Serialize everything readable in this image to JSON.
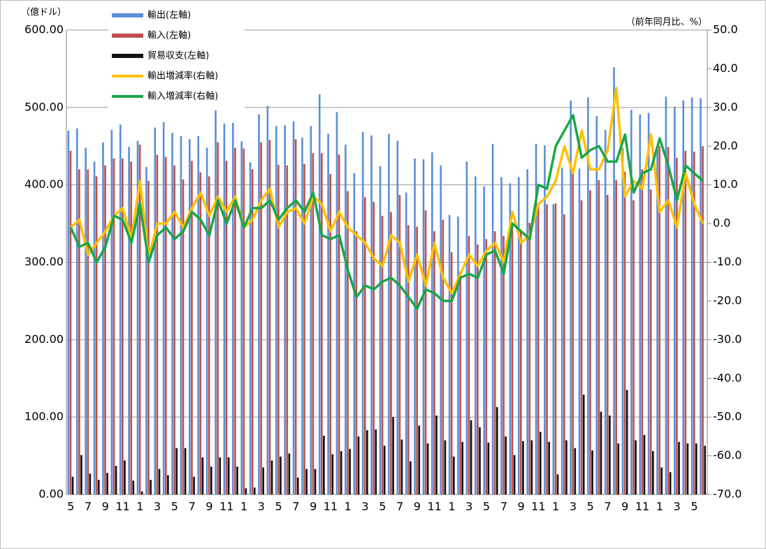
{
  "chart_data": {
    "type": "bar_line",
    "y_label": "（億ドル）",
    "y2_label": "（前年同月比、%）",
    "categories": [
      "5",
      null,
      "7",
      null,
      "9",
      null,
      "11",
      null,
      "1",
      null,
      "3",
      null,
      "5",
      null,
      "7",
      null,
      "9",
      null,
      "11",
      null,
      "1",
      null,
      "3",
      null,
      "5",
      null,
      "7",
      null,
      "9",
      null,
      "11",
      null,
      "1",
      null,
      "3",
      null,
      "5",
      null,
      "7",
      null,
      "9",
      null,
      "11",
      null,
      "1",
      null,
      "3",
      null,
      "5",
      null,
      "7",
      null,
      "9",
      null,
      "11",
      null,
      "1",
      null,
      "3",
      null,
      "5",
      null,
      "7",
      null,
      "9",
      null,
      "11",
      null,
      "1",
      null,
      "3",
      null,
      "5",
      null
    ],
    "ylim": [
      0,
      600
    ],
    "yticks": [
      {
        "value": 0,
        "label": "0.00"
      },
      {
        "value": 100,
        "label": "100.00"
      },
      {
        "value": 200,
        "label": "200.00"
      },
      {
        "value": 300,
        "label": "300.00"
      },
      {
        "value": 400,
        "label": "400.00"
      },
      {
        "value": 500,
        "label": "500.00"
      },
      {
        "value": 600,
        "label": "600.00"
      }
    ],
    "y2lim": [
      -70,
      50
    ],
    "y2ticks": [
      {
        "value": -70,
        "label": "-70.0"
      },
      {
        "value": -60,
        "label": "-60.0"
      },
      {
        "value": -50,
        "label": "-50.0"
      },
      {
        "value": -40,
        "label": "-40.0"
      },
      {
        "value": -30,
        "label": "-30.0"
      },
      {
        "value": -20,
        "label": "-20.0"
      },
      {
        "value": -10,
        "label": "-10.0"
      },
      {
        "value": 0,
        "label": "0.0"
      },
      {
        "value": 10,
        "label": "10.0"
      },
      {
        "value": 20,
        "label": "20.0"
      },
      {
        "value": 30,
        "label": "30.0"
      },
      {
        "value": 40,
        "label": "40.0"
      },
      {
        "value": 50,
        "label": "50.0"
      }
    ],
    "grid": true,
    "legend": "top-left",
    "series": [
      {
        "name": "輸出(左軸)",
        "color": "#5b8fd6",
        "kind": "bar",
        "values": [
          470,
          473,
          448,
          430,
          455,
          471,
          478,
          449,
          457,
          423,
          474,
          481,
          467,
          463,
          459,
          463,
          448,
          497,
          479,
          480,
          456,
          429,
          491,
          502,
          476,
          477,
          482,
          461,
          476,
          517,
          466,
          494,
          452,
          415,
          468,
          464,
          424,
          466,
          457,
          390,
          434,
          433,
          442,
          425,
          361,
          359,
          430,
          411,
          398,
          453,
          410,
          402,
          410,
          420,
          453,
          451,
          375,
          422,
          509,
          421,
          513,
          489,
          471,
          552,
          448,
          497,
          491,
          493,
          446,
          514,
          501,
          509,
          513,
          512
        ]
      },
      {
        "name": "輸入(左軸)",
        "color": "#c0504d",
        "kind": "bar",
        "values": [
          444,
          420,
          420,
          411,
          425,
          434,
          434,
          430,
          452,
          405,
          439,
          436,
          425,
          407,
          431,
          416,
          411,
          455,
          431,
          448,
          447,
          420,
          455,
          458,
          426,
          425,
          459,
          427,
          441,
          441,
          414,
          439,
          392,
          340,
          384,
          378,
          360,
          365,
          387,
          348,
          346,
          367,
          340,
          355,
          313,
          288,
          334,
          323,
          330,
          340,
          334,
          350,
          340,
          351,
          372,
          375,
          376,
          362,
          414,
          380,
          393,
          406,
          387,
          406,
          417,
          380,
          420,
          394,
          450,
          449,
          435,
          444,
          443,
          450
        ]
      },
      {
        "name": "貿易収支(左軸)",
        "color": "#111111",
        "kind": "bar",
        "values": [
          23,
          51,
          27,
          19,
          28,
          37,
          44,
          18,
          4,
          19,
          33,
          25,
          60,
          60,
          23,
          48,
          36,
          48,
          48,
          36,
          8,
          9,
          35,
          44,
          49,
          53,
          22,
          33,
          33,
          76,
          52,
          56,
          59,
          75,
          83,
          84,
          63,
          100,
          71,
          43,
          89,
          66,
          102,
          70,
          49,
          68,
          96,
          87,
          67,
          113,
          75,
          51,
          69,
          70,
          81,
          68,
          26,
          70,
          60,
          129,
          57,
          107,
          102,
          66,
          135,
          70,
          77,
          56,
          35,
          29,
          68,
          66,
          66,
          63
        ]
      },
      {
        "name": "輸出増減率(右軸)",
        "color": "#ffc000",
        "kind": "line",
        "axis": "y2",
        "values": [
          -1,
          1,
          -8,
          -5,
          -2,
          2,
          4,
          -4,
          11,
          -9,
          0,
          0,
          3,
          -1,
          4,
          8,
          2,
          7,
          3,
          7,
          -1,
          1,
          6,
          9,
          -1,
          3,
          4,
          0,
          7,
          5,
          -2,
          3,
          -1,
          -3,
          -5,
          -9,
          -11,
          -3,
          -5,
          -15,
          -8,
          -16,
          -5,
          -14,
          -18,
          -13,
          -8,
          -11,
          -7,
          -5,
          -10,
          3,
          -5,
          -3,
          5,
          7,
          11,
          20,
          13,
          24,
          14,
          14,
          19,
          35,
          7,
          11,
          9,
          23,
          3,
          6,
          -1,
          13,
          5,
          0
        ]
      },
      {
        "name": "輸入増減率(右軸)",
        "color": "#1aa64a",
        "kind": "line",
        "axis": "y2",
        "values": [
          -1,
          -6,
          -5,
          -10,
          -6,
          2,
          1,
          -5,
          5,
          -10,
          -3,
          -1,
          -4,
          -2,
          3,
          1,
          -3,
          6,
          0,
          6,
          -1,
          4,
          4,
          6,
          1,
          4,
          6,
          3,
          8,
          -3,
          -4,
          -3,
          -12,
          -19,
          -16,
          -17,
          -15,
          -14,
          -16,
          -19,
          -22,
          -17,
          -18,
          -20,
          -20,
          -14,
          -13,
          -14,
          -8,
          -7,
          -13,
          0,
          -2,
          -4,
          10,
          9,
          20,
          24,
          28,
          17,
          19,
          20,
          16,
          16,
          23,
          8,
          13,
          14,
          22,
          15,
          6,
          15,
          13,
          11
        ]
      }
    ]
  }
}
